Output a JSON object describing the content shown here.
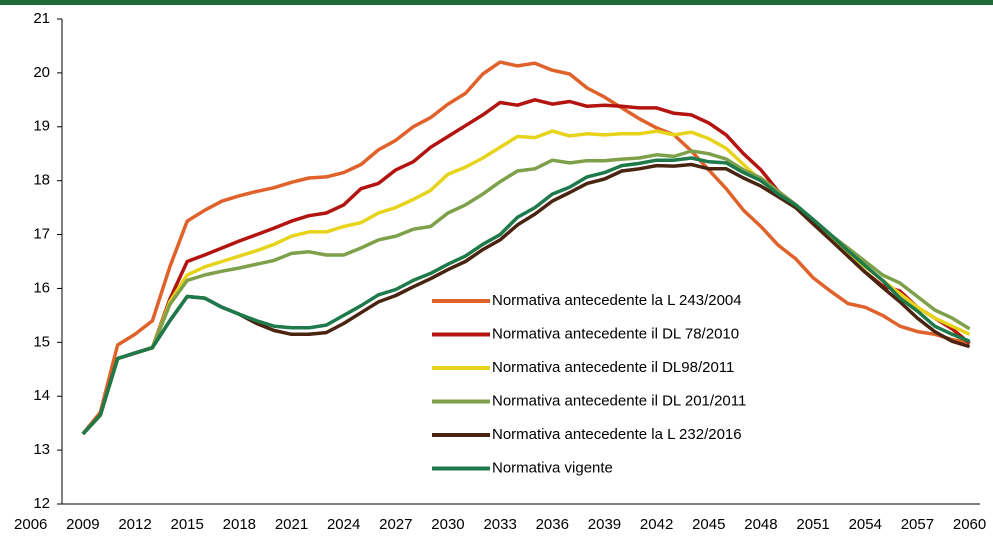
{
  "chart_data": {
    "type": "line",
    "x": [
      2009,
      2010,
      2011,
      2012,
      2013,
      2014,
      2015,
      2016,
      2017,
      2018,
      2019,
      2020,
      2021,
      2022,
      2023,
      2024,
      2025,
      2026,
      2027,
      2028,
      2029,
      2030,
      2031,
      2032,
      2033,
      2034,
      2035,
      2036,
      2037,
      2038,
      2039,
      2040,
      2041,
      2042,
      2043,
      2044,
      2045,
      2046,
      2047,
      2048,
      2049,
      2050,
      2051,
      2052,
      2053,
      2054,
      2055,
      2056,
      2057,
      2058,
      2059,
      2060
    ],
    "series": [
      {
        "name": "Normativa antecedente la L 243/2004",
        "color": "#e0622a",
        "values": [
          13.3,
          13.7,
          14.95,
          15.15,
          15.4,
          16.4,
          17.25,
          17.45,
          17.62,
          17.72,
          17.8,
          17.87,
          17.97,
          18.05,
          18.07,
          18.15,
          18.3,
          18.57,
          18.75,
          19.0,
          19.17,
          19.42,
          19.62,
          19.98,
          20.2,
          20.13,
          20.18,
          20.05,
          19.98,
          19.72,
          19.55,
          19.35,
          19.15,
          18.98,
          18.85,
          18.55,
          18.2,
          17.85,
          17.45,
          17.15,
          16.8,
          16.55,
          16.2,
          15.95,
          15.72,
          15.65,
          15.5,
          15.3,
          15.2,
          15.15,
          15.05,
          15.0
        ]
      },
      {
        "name": "Normativa antecedente il DL 78/2010",
        "color": "#b3140f",
        "values": [
          13.3,
          13.65,
          14.7,
          14.8,
          14.9,
          15.8,
          16.5,
          16.62,
          16.75,
          16.88,
          17.0,
          17.12,
          17.25,
          17.35,
          17.4,
          17.55,
          17.85,
          17.95,
          18.2,
          18.35,
          18.62,
          18.82,
          19.02,
          19.22,
          19.45,
          19.4,
          19.5,
          19.42,
          19.47,
          19.38,
          19.4,
          19.38,
          19.35,
          19.35,
          19.25,
          19.22,
          19.07,
          18.85,
          18.5,
          18.2,
          17.8,
          17.55,
          17.2,
          16.95,
          16.6,
          16.3,
          16.05,
          15.95,
          15.65,
          15.45,
          15.25,
          14.98
        ]
      },
      {
        "name": "Normativa antecedente il DL98/2011",
        "color": "#e6d31a",
        "values": [
          13.3,
          13.65,
          14.7,
          14.8,
          14.9,
          15.75,
          16.25,
          16.4,
          16.5,
          16.6,
          16.7,
          16.82,
          16.97,
          17.05,
          17.05,
          17.15,
          17.22,
          17.4,
          17.5,
          17.65,
          17.82,
          18.12,
          18.25,
          18.42,
          18.62,
          18.82,
          18.8,
          18.92,
          18.83,
          18.87,
          18.85,
          18.87,
          18.87,
          18.92,
          18.85,
          18.9,
          18.78,
          18.6,
          18.3,
          18.0,
          17.75,
          17.5,
          17.2,
          16.95,
          16.65,
          16.4,
          16.15,
          15.9,
          15.65,
          15.45,
          15.3,
          15.15
        ]
      },
      {
        "name": "Normativa antecedente  il DL 201/2011",
        "color": "#7fa04a",
        "values": [
          13.3,
          13.65,
          14.7,
          14.8,
          14.9,
          15.7,
          16.15,
          16.25,
          16.32,
          16.38,
          16.45,
          16.52,
          16.65,
          16.68,
          16.62,
          16.62,
          16.75,
          16.9,
          16.97,
          17.1,
          17.15,
          17.4,
          17.55,
          17.75,
          17.98,
          18.18,
          18.22,
          18.38,
          18.33,
          18.37,
          18.37,
          18.4,
          18.42,
          18.48,
          18.45,
          18.55,
          18.5,
          18.4,
          18.2,
          18.05,
          17.8,
          17.55,
          17.28,
          17.0,
          16.75,
          16.5,
          16.25,
          16.1,
          15.85,
          15.6,
          15.45,
          15.25
        ]
      },
      {
        "name": "Normativa antecedente la L 232/2016",
        "color": "#4a2410",
        "values": [
          13.3,
          13.65,
          14.7,
          14.8,
          14.9,
          15.4,
          15.85,
          15.82,
          15.65,
          15.52,
          15.35,
          15.22,
          15.15,
          15.15,
          15.18,
          15.35,
          15.55,
          15.75,
          15.87,
          16.03,
          16.18,
          16.35,
          16.5,
          16.72,
          16.9,
          17.18,
          17.38,
          17.62,
          17.78,
          17.95,
          18.03,
          18.18,
          18.22,
          18.28,
          18.27,
          18.3,
          18.22,
          18.22,
          18.05,
          17.9,
          17.7,
          17.5,
          17.2,
          16.9,
          16.6,
          16.3,
          16.02,
          15.75,
          15.45,
          15.2,
          15.02,
          14.92
        ]
      },
      {
        "name": "Normativa vigente",
        "color": "#1e7a4a",
        "values": [
          13.3,
          13.65,
          14.7,
          14.8,
          14.9,
          15.4,
          15.85,
          15.82,
          15.65,
          15.52,
          15.4,
          15.3,
          15.27,
          15.27,
          15.32,
          15.5,
          15.68,
          15.88,
          15.98,
          16.15,
          16.28,
          16.45,
          16.6,
          16.82,
          17.0,
          17.32,
          17.5,
          17.75,
          17.88,
          18.07,
          18.15,
          18.28,
          18.32,
          18.38,
          18.38,
          18.42,
          18.35,
          18.33,
          18.15,
          18.0,
          17.75,
          17.55,
          17.28,
          17.0,
          16.7,
          16.42,
          16.15,
          15.82,
          15.58,
          15.3,
          15.15,
          15.02
        ]
      }
    ],
    "xlim": [
      2007.8,
      2060.6
    ],
    "xticks": [
      2006,
      2009,
      2012,
      2015,
      2018,
      2021,
      2024,
      2027,
      2030,
      2033,
      2036,
      2039,
      2042,
      2045,
      2048,
      2051,
      2054,
      2057,
      2060
    ],
    "ylim": [
      12,
      21
    ],
    "yticks": [
      12,
      13,
      14,
      15,
      16,
      17,
      18,
      19,
      20,
      21
    ],
    "grid": false,
    "legend": "bottom"
  }
}
